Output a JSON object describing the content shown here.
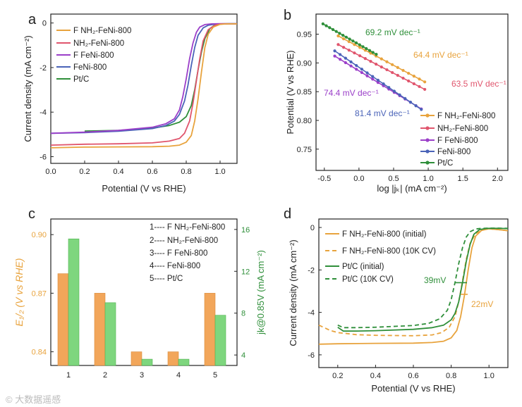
{
  "watermark": "© 大数据遥感",
  "colors": {
    "orange": "#e8a33d",
    "red": "#e0556d",
    "purple": "#9b3fc9",
    "blue": "#4a63b8",
    "green": "#2f8f3a",
    "bar_orange": "#f2a65a",
    "bar_green": "#7ed67e",
    "axis": "#222222"
  },
  "chart_data": [
    {
      "panel": "a",
      "type": "line",
      "xlabel": "Potential (V vs RHE)",
      "ylabel": "Current density (mA cm⁻²)",
      "xlim": [
        0.0,
        1.1
      ],
      "ylim": [
        -6.3,
        0.4
      ],
      "xticks": [
        0.0,
        0.2,
        0.4,
        0.6,
        0.8,
        1.0
      ],
      "xtick_labels": [
        "0.0",
        "0.2",
        "0.4",
        "0.6",
        "0.8",
        "1.0"
      ],
      "yticks": [
        0,
        -2,
        -4,
        -6
      ],
      "ytick_labels": [
        "0",
        "-2",
        "-4",
        "-6"
      ],
      "legend": [
        "F NH₂-FeNi-800",
        "NH₂-FeNi-800",
        "F FeNi-800",
        "FeNi-800",
        "Pt/C"
      ],
      "series": [
        {
          "name": "F NH₂-FeNi-800",
          "color": "orange",
          "x": [
            0.0,
            0.2,
            0.4,
            0.6,
            0.7,
            0.76,
            0.8,
            0.83,
            0.85,
            0.87,
            0.89,
            0.91,
            0.93,
            0.96,
            1.0,
            1.04,
            1.1
          ],
          "y": [
            -5.6,
            -5.57,
            -5.56,
            -5.55,
            -5.53,
            -5.48,
            -5.35,
            -5.05,
            -4.4,
            -3.4,
            -2.2,
            -1.1,
            -0.5,
            -0.18,
            -0.06,
            -0.04,
            -0.04
          ]
        },
        {
          "name": "NH₂-FeNi-800",
          "color": "red",
          "x": [
            0.0,
            0.2,
            0.4,
            0.6,
            0.7,
            0.76,
            0.79,
            0.82,
            0.84,
            0.86,
            0.88,
            0.9,
            0.93,
            0.97,
            1.0,
            1.05,
            1.1
          ],
          "y": [
            -5.48,
            -5.44,
            -5.42,
            -5.38,
            -5.3,
            -5.18,
            -4.95,
            -4.4,
            -3.6,
            -2.6,
            -1.6,
            -0.8,
            -0.3,
            -0.1,
            -0.05,
            -0.04,
            -0.04
          ]
        },
        {
          "name": "F FeNi-800",
          "color": "purple",
          "x": [
            0.0,
            0.2,
            0.4,
            0.6,
            0.68,
            0.73,
            0.76,
            0.78,
            0.8,
            0.82,
            0.84,
            0.86,
            0.88,
            0.91,
            0.95,
            1.0,
            1.1
          ],
          "y": [
            -4.95,
            -4.9,
            -4.82,
            -4.68,
            -4.52,
            -4.3,
            -3.9,
            -3.3,
            -2.5,
            -1.6,
            -0.9,
            -0.42,
            -0.18,
            -0.07,
            -0.04,
            -0.03,
            -0.03
          ]
        },
        {
          "name": "FeNi-800",
          "color": "blue",
          "x": [
            0.0,
            0.2,
            0.4,
            0.6,
            0.68,
            0.73,
            0.76,
            0.79,
            0.81,
            0.83,
            0.85,
            0.87,
            0.9,
            0.93,
            0.97,
            1.02,
            1.1
          ],
          "y": [
            -4.95,
            -4.92,
            -4.86,
            -4.74,
            -4.6,
            -4.4,
            -4.1,
            -3.5,
            -2.8,
            -1.9,
            -1.1,
            -0.55,
            -0.22,
            -0.1,
            -0.05,
            -0.04,
            -0.04
          ]
        },
        {
          "name": "Pt/C",
          "color": "green",
          "x": [
            0.2,
            0.4,
            0.6,
            0.7,
            0.76,
            0.8,
            0.83,
            0.85,
            0.87,
            0.89,
            0.91,
            0.94,
            0.97,
            1.0,
            1.05,
            1.1
          ],
          "y": [
            -4.85,
            -4.82,
            -4.72,
            -4.6,
            -4.45,
            -4.2,
            -3.7,
            -3.0,
            -2.1,
            -1.3,
            -0.7,
            -0.25,
            -0.08,
            -0.04,
            -0.03,
            -0.03
          ]
        }
      ]
    },
    {
      "panel": "b",
      "type": "line",
      "xlabel": "log |jₖ| (mA cm⁻²)",
      "ylabel": "Potential (V vs RHE)",
      "xlim": [
        -0.62,
        2.15
      ],
      "ylim": [
        0.713,
        0.985
      ],
      "xticks": [
        -0.5,
        0.0,
        0.5,
        1.0,
        1.5,
        2.0
      ],
      "xtick_labels": [
        "-0.5",
        "0.0",
        "0.5",
        "1.0",
        "1.5",
        "2.0"
      ],
      "yticks": [
        0.75,
        0.8,
        0.85,
        0.9,
        0.95
      ],
      "ytick_labels": [
        "0.75",
        "0.80",
        "0.85",
        "0.90",
        "0.95"
      ],
      "legend": [
        "F NH₂-FeNi-800",
        "NH₂-FeNi-800",
        "F FeNi-800",
        "FeNi-800",
        "Pt/C"
      ],
      "series": [
        {
          "name": "F NH₂-FeNi-800",
          "color": "orange",
          "x_range": [
            -0.3,
            0.95
          ],
          "y_range": [
            0.947,
            0.867
          ],
          "slope_label": "64.4 mV dec⁻¹"
        },
        {
          "name": "NH₂-FeNi-800",
          "color": "red",
          "x_range": [
            -0.3,
            0.95
          ],
          "y_range": [
            0.932,
            0.854
          ],
          "slope_label": "63.5 mV dec⁻¹"
        },
        {
          "name": "F FeNi-800",
          "color": "purple",
          "x_range": [
            -0.35,
            0.9
          ],
          "y_range": [
            0.912,
            0.82
          ],
          "slope_label": "74.4 mV dec⁻¹"
        },
        {
          "name": "FeNi-800",
          "color": "blue",
          "x_range": [
            -0.35,
            0.9
          ],
          "y_range": [
            0.921,
            0.819
          ],
          "slope_label": "81.4 mV dec⁻¹"
        },
        {
          "name": "Pt/C",
          "color": "green",
          "x_range": [
            -0.52,
            0.25
          ],
          "y_range": [
            0.968,
            0.915
          ],
          "slope_label": "69.2 mV dec⁻¹"
        }
      ]
    },
    {
      "panel": "c",
      "type": "bar",
      "categories": [
        "1",
        "2",
        "3",
        "4",
        "5"
      ],
      "ylabel_left": "E₁/₂ (V vs RHE)",
      "ylabel_right": "jk@0.85V (mA cm⁻²)",
      "ylim_left": [
        0.833,
        0.908
      ],
      "ylim_right": [
        3.0,
        17.0
      ],
      "yticks_left": [
        0.84,
        0.87,
        0.9
      ],
      "ytick_labels_left": [
        "0.84",
        "0.87",
        "0.90"
      ],
      "yticks_right": [
        4,
        8,
        12,
        16
      ],
      "ytick_labels_right": [
        "4",
        "8",
        "12",
        "16"
      ],
      "legend": [
        "1---- F NH₂-FeNi-800",
        "2---- NH₂-FeNi-800",
        "3---- F FeNi-800",
        "4---- FeNi-800",
        "5---- Pt/C"
      ],
      "series": [
        {
          "name": "E1/2",
          "axis": "left",
          "color": "bar_orange",
          "values": [
            0.88,
            0.87,
            0.84,
            0.84,
            0.87
          ]
        },
        {
          "name": "jk@0.85V",
          "axis": "right",
          "color": "bar_green",
          "values": [
            15.1,
            9.0,
            3.6,
            3.6,
            7.8
          ]
        }
      ]
    },
    {
      "panel": "d",
      "type": "line",
      "xlabel": "Potential (V vs RHE)",
      "ylabel": "Current density (mA cm⁻²)",
      "xlim": [
        0.1,
        1.1
      ],
      "ylim": [
        -6.6,
        0.4
      ],
      "xticks": [
        0.2,
        0.4,
        0.6,
        0.8,
        1.0
      ],
      "xtick_labels": [
        "0.2",
        "0.4",
        "0.6",
        "0.8",
        "1.0"
      ],
      "yticks": [
        0,
        -2,
        -4,
        -6
      ],
      "ytick_labels": [
        "0",
        "-2",
        "-4",
        "-6"
      ],
      "legend": [
        "F NH₂-FeNi-800 (initial)",
        "F NH₂-FeNi-800 (10K CV)",
        "Pt/C (initial)",
        "Pt/C (10K CV)"
      ],
      "annotations": [
        "39mV",
        "22mV"
      ],
      "series": [
        {
          "name": "F NH₂-FeNi-800 (initial)",
          "color": "orange",
          "dash": false,
          "x": [
            0.1,
            0.2,
            0.4,
            0.6,
            0.7,
            0.76,
            0.8,
            0.83,
            0.85,
            0.87,
            0.89,
            0.91,
            0.93,
            0.96,
            1.0,
            1.05,
            1.1
          ],
          "y": [
            -5.5,
            -5.48,
            -5.46,
            -5.45,
            -5.42,
            -5.36,
            -5.2,
            -4.85,
            -4.2,
            -3.2,
            -2.0,
            -0.95,
            -0.4,
            -0.14,
            -0.06,
            -0.1,
            -0.15
          ]
        },
        {
          "name": "F NH₂-FeNi-800 (10K CV)",
          "color": "orange",
          "dash": true,
          "x": [
            0.1,
            0.16,
            0.2,
            0.3,
            0.4,
            0.6,
            0.7,
            0.75,
            0.79,
            0.82,
            0.84,
            0.86,
            0.88,
            0.9,
            0.93,
            0.97,
            1.0,
            1.05,
            1.1
          ],
          "y": [
            -4.6,
            -4.85,
            -4.95,
            -5.05,
            -5.08,
            -5.1,
            -5.06,
            -4.95,
            -4.7,
            -4.2,
            -3.5,
            -2.5,
            -1.5,
            -0.75,
            -0.28,
            -0.1,
            -0.06,
            -0.1,
            -0.15
          ]
        },
        {
          "name": "Pt/C (initial)",
          "color": "green",
          "dash": false,
          "x": [
            0.2,
            0.23,
            0.3,
            0.4,
            0.6,
            0.7,
            0.76,
            0.8,
            0.82,
            0.84,
            0.86,
            0.88,
            0.9,
            0.92,
            0.95,
            0.98,
            1.0,
            1.05,
            1.1
          ],
          "y": [
            -4.7,
            -4.88,
            -4.88,
            -4.86,
            -4.8,
            -4.72,
            -4.6,
            -4.35,
            -4.05,
            -3.5,
            -2.6,
            -1.6,
            -0.8,
            -0.32,
            -0.1,
            -0.05,
            -0.04,
            -0.04,
            -0.05
          ]
        },
        {
          "name": "Pt/C (10K CV)",
          "color": "green",
          "dash": true,
          "x": [
            0.2,
            0.23,
            0.3,
            0.4,
            0.6,
            0.68,
            0.74,
            0.78,
            0.8,
            0.82,
            0.84,
            0.86,
            0.88,
            0.9,
            0.93,
            0.96,
            1.0,
            1.05,
            1.1
          ],
          "y": [
            -4.6,
            -4.72,
            -4.72,
            -4.7,
            -4.62,
            -4.52,
            -4.3,
            -3.9,
            -3.4,
            -2.6,
            -1.7,
            -0.95,
            -0.45,
            -0.2,
            -0.07,
            -0.04,
            -0.03,
            -0.03,
            -0.04
          ]
        }
      ]
    }
  ]
}
